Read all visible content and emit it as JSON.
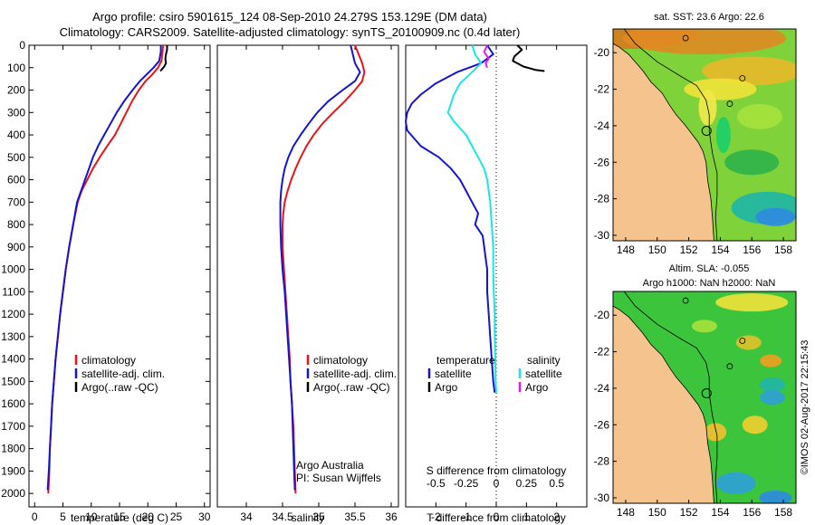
{
  "header": {
    "line1": "Argo profile: csiro 5901615_124 08-Sep-2010 24.279S 153.129E (DM data)",
    "line2": "Climatology: CARS2009. Satellite-adjusted climatology: synTS_20100909.nc (0.4d later)"
  },
  "colors": {
    "climatology": "#e8141a",
    "satellite": "#1414d2",
    "argo": "#000000",
    "satellite_salinity": "#19e6e6",
    "argo_salinity": "#e619e6",
    "land": "#f5c48e"
  },
  "chart_data": [
    {
      "type": "line",
      "panel": "temperature",
      "xlabel": "temperature (deg C)",
      "xlim": [
        -1,
        31
      ],
      "xticks": [
        0,
        5,
        10,
        15,
        20,
        25,
        30
      ],
      "ylim": [
        0,
        2060
      ],
      "yticks": [
        0,
        100,
        200,
        300,
        400,
        500,
        600,
        700,
        800,
        900,
        1000,
        1100,
        1200,
        1300,
        1400,
        1500,
        1600,
        1700,
        1800,
        1900,
        2000
      ],
      "legend": [
        "climatology",
        "satellite-adj. clim.",
        "Argo(..raw -QC)"
      ],
      "series": [
        {
          "name": "climatology",
          "color": "climatology",
          "points": [
            [
              22.7,
              0
            ],
            [
              22.6,
              30
            ],
            [
              22.4,
              70
            ],
            [
              21.8,
              100
            ],
            [
              20.8,
              130
            ],
            [
              19.6,
              160
            ],
            [
              18.4,
              200
            ],
            [
              17.2,
              250
            ],
            [
              16.2,
              300
            ],
            [
              15.2,
              350
            ],
            [
              14.2,
              400
            ],
            [
              12.8,
              450
            ],
            [
              11.5,
              500
            ],
            [
              10.3,
              550
            ],
            [
              9.3,
              600
            ],
            [
              8.3,
              650
            ],
            [
              7.6,
              700
            ],
            [
              6.8,
              800
            ],
            [
              6.1,
              900
            ],
            [
              5.5,
              1000
            ],
            [
              5.0,
              1100
            ],
            [
              4.5,
              1200
            ],
            [
              4.1,
              1300
            ],
            [
              3.7,
              1400
            ],
            [
              3.4,
              1500
            ],
            [
              3.1,
              1600
            ],
            [
              2.9,
              1700
            ],
            [
              2.7,
              1800
            ],
            [
              2.6,
              1900
            ],
            [
              2.4,
              2000
            ]
          ]
        },
        {
          "name": "satellite-adj. clim.",
          "color": "satellite",
          "points": [
            [
              22.3,
              0
            ],
            [
              22.3,
              30
            ],
            [
              22.0,
              70
            ],
            [
              21.0,
              100
            ],
            [
              19.8,
              130
            ],
            [
              18.6,
              160
            ],
            [
              17.3,
              200
            ],
            [
              15.8,
              250
            ],
            [
              14.5,
              300
            ],
            [
              13.4,
              350
            ],
            [
              12.3,
              400
            ],
            [
              11.2,
              450
            ],
            [
              10.3,
              500
            ],
            [
              9.6,
              550
            ],
            [
              8.9,
              600
            ],
            [
              8.2,
              650
            ],
            [
              7.5,
              700
            ],
            [
              6.8,
              800
            ],
            [
              6.1,
              900
            ],
            [
              5.5,
              1000
            ],
            [
              5.0,
              1100
            ],
            [
              4.5,
              1200
            ],
            [
              4.1,
              1300
            ],
            [
              3.7,
              1400
            ],
            [
              3.4,
              1500
            ],
            [
              3.1,
              1600
            ],
            [
              2.9,
              1700
            ],
            [
              2.7,
              1800
            ],
            [
              2.5,
              1900
            ],
            [
              2.3,
              1985
            ]
          ]
        },
        {
          "name": "Argo(..raw -QC)",
          "color": "argo",
          "points": [
            [
              23.4,
              0
            ],
            [
              23.4,
              20
            ],
            [
              23.2,
              40
            ],
            [
              23.1,
              60
            ],
            [
              23.2,
              80
            ],
            [
              22.9,
              95
            ],
            [
              22.4,
              110
            ],
            [
              22.2,
              115
            ]
          ]
        }
      ]
    },
    {
      "type": "line",
      "panel": "salinity",
      "xlabel": "salinity",
      "xlim": [
        33.6,
        36.1
      ],
      "xticks": [
        34,
        34.5,
        35,
        35.5,
        36
      ],
      "ylim": [
        0,
        2060
      ],
      "legend": [
        "climatology",
        "satellite-adj. clim.",
        "Argo(..raw -QC)"
      ],
      "annotation": [
        "Argo Australia",
        "PI: Susan Wijffels"
      ],
      "series": [
        {
          "name": "climatology",
          "color": "climatology",
          "points": [
            [
              35.5,
              0
            ],
            [
              35.55,
              40
            ],
            [
              35.6,
              80
            ],
            [
              35.63,
              120
            ],
            [
              35.6,
              160
            ],
            [
              35.5,
              200
            ],
            [
              35.36,
              250
            ],
            [
              35.2,
              300
            ],
            [
              35.05,
              350
            ],
            [
              34.93,
              400
            ],
            [
              34.83,
              450
            ],
            [
              34.75,
              500
            ],
            [
              34.68,
              550
            ],
            [
              34.62,
              600
            ],
            [
              34.57,
              650
            ],
            [
              34.53,
              700
            ],
            [
              34.51,
              750
            ],
            [
              34.5,
              800
            ],
            [
              34.5,
              900
            ],
            [
              34.52,
              1000
            ],
            [
              34.54,
              1100
            ],
            [
              34.56,
              1200
            ],
            [
              34.58,
              1300
            ],
            [
              34.6,
              1400
            ],
            [
              34.61,
              1500
            ],
            [
              34.63,
              1600
            ],
            [
              34.65,
              1700
            ],
            [
              34.66,
              1800
            ],
            [
              34.67,
              1900
            ],
            [
              34.68,
              2000
            ]
          ]
        },
        {
          "name": "satellite-adj. clim.",
          "color": "satellite",
          "points": [
            [
              35.44,
              0
            ],
            [
              35.47,
              40
            ],
            [
              35.5,
              80
            ],
            [
              35.57,
              120
            ],
            [
              35.5,
              160
            ],
            [
              35.33,
              200
            ],
            [
              35.13,
              250
            ],
            [
              34.98,
              300
            ],
            [
              34.86,
              350
            ],
            [
              34.75,
              400
            ],
            [
              34.65,
              450
            ],
            [
              34.58,
              500
            ],
            [
              34.53,
              550
            ],
            [
              34.5,
              600
            ],
            [
              34.48,
              650
            ],
            [
              34.47,
              700
            ],
            [
              34.47,
              750
            ],
            [
              34.47,
              800
            ],
            [
              34.48,
              900
            ],
            [
              34.5,
              1000
            ],
            [
              34.53,
              1100
            ],
            [
              34.55,
              1200
            ],
            [
              34.57,
              1300
            ],
            [
              34.59,
              1400
            ],
            [
              34.61,
              1500
            ],
            [
              34.63,
              1600
            ],
            [
              34.64,
              1700
            ],
            [
              34.65,
              1800
            ],
            [
              34.66,
              1900
            ],
            [
              34.67,
              1985
            ]
          ]
        }
      ]
    },
    {
      "type": "line",
      "panel": "difference",
      "xlabel": "T difference from climatology",
      "xlabel_top": "S difference from climatology",
      "xlim": [
        -3,
        3
      ],
      "xticks": [
        -2,
        -1,
        0,
        1,
        2
      ],
      "xticks_S": [
        "-0.5",
        "-0.25",
        "0",
        "0.25",
        "0.5"
      ],
      "xticks_S_pos": [
        -2,
        -1,
        0,
        1,
        2
      ],
      "ylim": [
        0,
        2060
      ],
      "legend_left_title": "temperature",
      "legend_right_title": "salinity",
      "legend_left": [
        "satellite",
        "Argo"
      ],
      "legend_right": [
        "satellite",
        "Argo"
      ],
      "series": [
        {
          "name": "T satellite",
          "color": "satellite",
          "points": [
            [
              -0.3,
              0
            ],
            [
              -0.1,
              40
            ],
            [
              -0.5,
              80
            ],
            [
              -1.3,
              120
            ],
            [
              -2.0,
              170
            ],
            [
              -2.5,
              220
            ],
            [
              -2.8,
              260
            ],
            [
              -2.95,
              300
            ],
            [
              -3.0,
              340
            ],
            [
              -2.95,
              380
            ],
            [
              -2.5,
              450
            ],
            [
              -1.9,
              500
            ],
            [
              -1.5,
              550
            ],
            [
              -1.2,
              600
            ],
            [
              -1.0,
              650
            ],
            [
              -0.8,
              700
            ],
            [
              -0.6,
              750
            ],
            [
              -0.7,
              800
            ],
            [
              -0.45,
              850
            ],
            [
              -0.4,
              900
            ],
            [
              -0.35,
              950
            ],
            [
              -0.3,
              1000
            ],
            [
              -0.3,
              1100
            ],
            [
              -0.25,
              1200
            ],
            [
              -0.2,
              1300
            ],
            [
              -0.15,
              1400
            ],
            [
              -0.1,
              1500
            ],
            [
              -0.05,
              1550
            ]
          ]
        },
        {
          "name": "T Argo",
          "color": "argo",
          "points": [
            [
              0.7,
              0
            ],
            [
              0.85,
              20
            ],
            [
              0.6,
              50
            ],
            [
              0.55,
              70
            ],
            [
              0.9,
              95
            ],
            [
              1.3,
              110
            ],
            [
              1.6,
              115
            ]
          ]
        },
        {
          "name": "S satellite",
          "color": "satellite_salinity",
          "points": [
            [
              -0.8,
              0
            ],
            [
              -0.7,
              40
            ],
            [
              -0.5,
              80
            ],
            [
              -0.8,
              120
            ],
            [
              -1.2,
              170
            ],
            [
              -1.4,
              220
            ],
            [
              -1.5,
              260
            ],
            [
              -1.6,
              300
            ],
            [
              -1.4,
              340
            ],
            [
              -1.0,
              400
            ],
            [
              -0.8,
              450
            ],
            [
              -0.6,
              500
            ],
            [
              -0.4,
              550
            ],
            [
              -0.3,
              600
            ],
            [
              -0.25,
              650
            ],
            [
              -0.2,
              700
            ],
            [
              -0.15,
              800
            ],
            [
              -0.1,
              900
            ],
            [
              -0.1,
              1000
            ],
            [
              -0.08,
              1100
            ],
            [
              -0.05,
              1200
            ],
            [
              -0.05,
              1300
            ],
            [
              -0.03,
              1400
            ],
            [
              -0.02,
              1500
            ],
            [
              0,
              1550
            ]
          ]
        },
        {
          "name": "S Argo",
          "color": "argo_salinity",
          "points": [
            [
              -0.3,
              0
            ],
            [
              -0.4,
              30
            ],
            [
              -0.25,
              60
            ],
            [
              -0.35,
              80
            ],
            [
              -0.3,
              100
            ]
          ]
        }
      ]
    },
    {
      "type": "heatmap",
      "panel": "SST map",
      "title": "sat. SST: 23.6  Argo: 22.6",
      "xticks": [
        148,
        150,
        152,
        154,
        156,
        158
      ],
      "yticks": [
        -20,
        -22,
        -24,
        -26,
        -28,
        -30
      ],
      "float_position": [
        153.129,
        -24.279
      ]
    },
    {
      "type": "heatmap",
      "panel": "SLA map",
      "title_lines": [
        "Altim. SLA: -0.055",
        "Argo h1000: NaN h2000: NaN"
      ],
      "xticks": [
        148,
        150,
        152,
        154,
        156,
        158
      ],
      "yticks": [
        -20,
        -22,
        -24,
        -26,
        -28,
        -30
      ],
      "float_position": [
        153.129,
        -24.279
      ]
    }
  ],
  "footer": {
    "stamp": "©IMOS 02-Aug-2017 22:15:43"
  }
}
